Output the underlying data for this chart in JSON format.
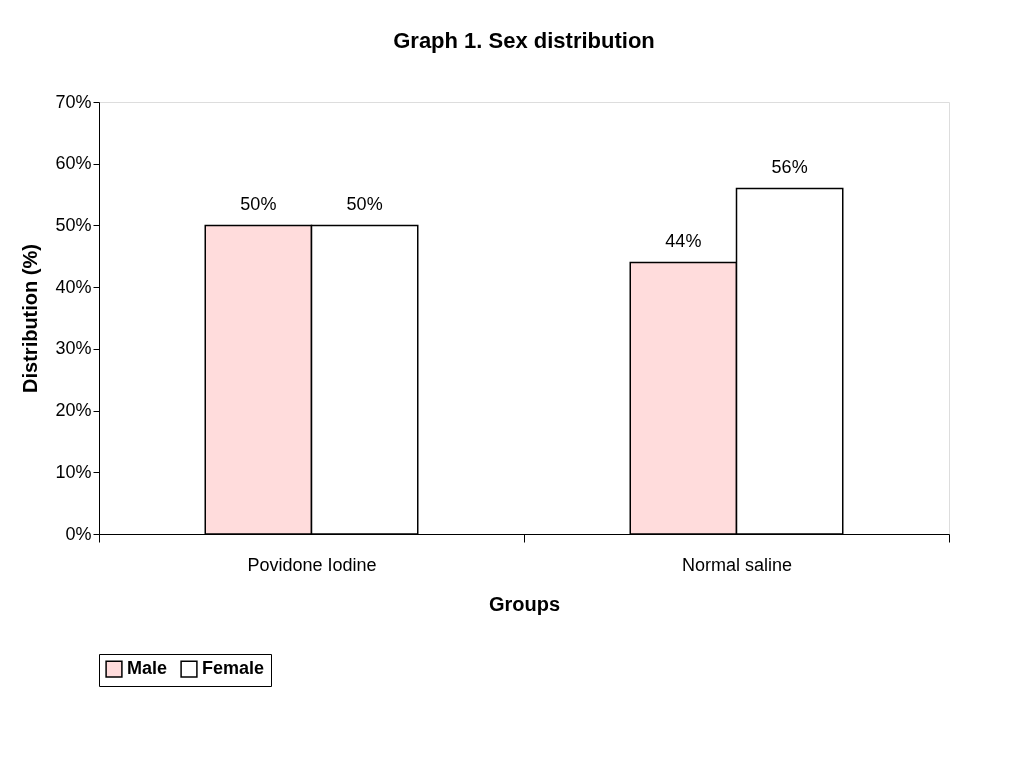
{
  "chart_data": {
    "type": "bar",
    "title": "Graph 1. Sex distribution",
    "xlabel": "Groups",
    "ylabel": "Distribution (%)",
    "categories": [
      "Povidone Iodine",
      "Normal saline"
    ],
    "series": [
      {
        "name": "Male",
        "color": "#ffdcdc",
        "values": [
          50,
          44
        ],
        "value_labels": [
          "50%",
          "44%"
        ]
      },
      {
        "name": "Female",
        "color": "#ffffff",
        "values": [
          50,
          56
        ],
        "value_labels": [
          "50%",
          "56%"
        ]
      }
    ],
    "ylim": [
      0,
      70
    ],
    "yticks": [
      {
        "value": 0,
        "label": "0%"
      },
      {
        "value": 10,
        "label": "10%"
      },
      {
        "value": 20,
        "label": "20%"
      },
      {
        "value": 30,
        "label": "30%"
      },
      {
        "value": 40,
        "label": "40%"
      },
      {
        "value": 50,
        "label": "50%"
      },
      {
        "value": 60,
        "label": "60%"
      },
      {
        "value": 70,
        "label": "70%"
      }
    ],
    "grid": false,
    "legend": "bottom"
  }
}
